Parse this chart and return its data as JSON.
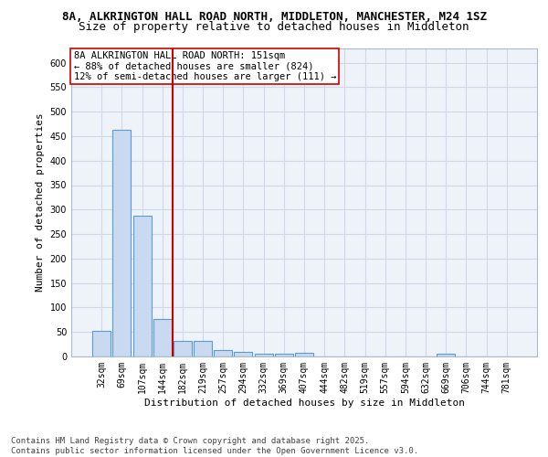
{
  "title_line1": "8A, ALKRINGTON HALL ROAD NORTH, MIDDLETON, MANCHESTER, M24 1SZ",
  "title_line2": "Size of property relative to detached houses in Middleton",
  "xlabel": "Distribution of detached houses by size in Middleton",
  "ylabel": "Number of detached properties",
  "categories": [
    "32sqm",
    "69sqm",
    "107sqm",
    "144sqm",
    "182sqm",
    "219sqm",
    "257sqm",
    "294sqm",
    "332sqm",
    "369sqm",
    "407sqm",
    "444sqm",
    "482sqm",
    "519sqm",
    "557sqm",
    "594sqm",
    "632sqm",
    "669sqm",
    "706sqm",
    "744sqm",
    "781sqm"
  ],
  "values": [
    52,
    463,
    288,
    76,
    31,
    31,
    14,
    9,
    5,
    6,
    7,
    0,
    0,
    0,
    0,
    0,
    0,
    5,
    0,
    0,
    0
  ],
  "bar_color": "#c9d9f0",
  "bar_edgecolor": "#5b9bd5",
  "grid_color": "#d0d8e8",
  "bg_color": "#eef2f9",
  "vline_color": "#cc0000",
  "vline_x": 3.5,
  "annotation_text": "8A ALKRINGTON HALL ROAD NORTH: 151sqm\n← 88% of detached houses are smaller (824)\n12% of semi-detached houses are larger (111) →",
  "annotation_box_color": "#ffffff",
  "annotation_box_edgecolor": "#cc0000",
  "ylim": [
    0,
    630
  ],
  "yticks": [
    0,
    50,
    100,
    150,
    200,
    250,
    300,
    350,
    400,
    450,
    500,
    550,
    600
  ],
  "footer_line1": "Contains HM Land Registry data © Crown copyright and database right 2025.",
  "footer_line2": "Contains public sector information licensed under the Open Government Licence v3.0.",
  "title_fontsize": 9,
  "subtitle_fontsize": 9,
  "axis_label_fontsize": 8,
  "tick_fontsize": 7,
  "annotation_fontsize": 7.5,
  "footer_fontsize": 6.5
}
